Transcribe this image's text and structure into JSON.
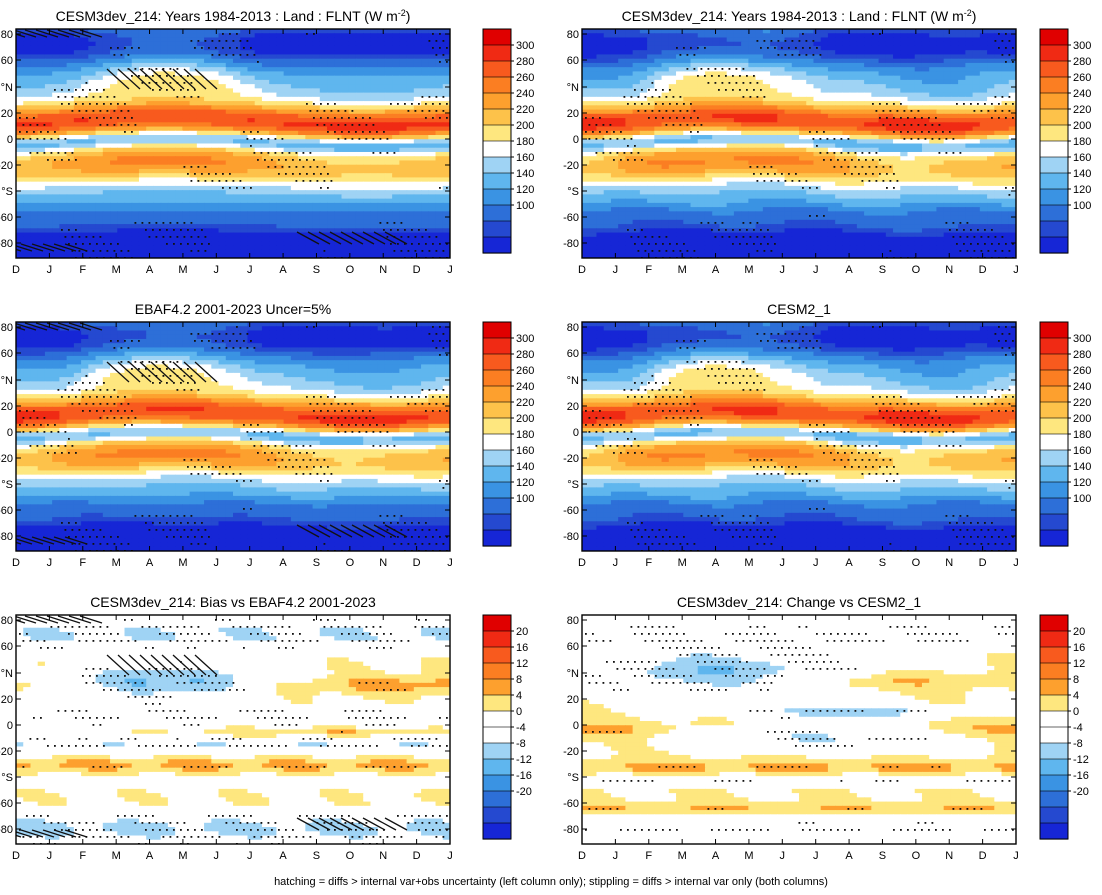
{
  "figure": {
    "footnote": "hatching = diffs > internal var+obs uncertainty (left column only); stippling = diffs > internal var only (both columns)"
  },
  "chart_data": [
    {
      "type": "heatmap",
      "title": "CESM3dev_214: Years 1984-2013 : Land : FLNT (W m",
      "title_sup": "-2",
      "title_tail": ")",
      "x_ticks": [
        "D",
        "J",
        "F",
        "M",
        "A",
        "M",
        "J",
        "J",
        "A",
        "S",
        "O",
        "N",
        "D",
        "J"
      ],
      "y_ticks": [
        "80",
        "60",
        "°N",
        "20",
        "0",
        "-20",
        "°S",
        "-60",
        "-80"
      ],
      "ylim": [
        -90,
        90
      ],
      "colorbar": {
        "labels": [
          "300",
          "280",
          "260",
          "240",
          "220",
          "200",
          "180",
          "160",
          "140",
          "120",
          "100"
        ],
        "colors": [
          "#e00000",
          "#f02a14",
          "#f85a1e",
          "#fb7e22",
          "#fda02e",
          "#fdc24a",
          "#fee77f",
          "#ffffff",
          "#9fd3f4",
          "#5fb6ee",
          "#3a93e3",
          "#2d6fd8",
          "#2549d0",
          "#1626d6"
        ],
        "range": [
          90,
          310
        ],
        "step": 10
      },
      "field_model": "climatology",
      "stipple": true,
      "hatching": true
    },
    {
      "type": "heatmap",
      "title": "CESM3dev_214: Years 1984-2013 : Land : FLNT (W m",
      "title_sup": "-2",
      "title_tail": ")",
      "x_ticks": [
        "D",
        "J",
        "F",
        "M",
        "A",
        "M",
        "J",
        "J",
        "A",
        "S",
        "O",
        "N",
        "D",
        "J"
      ],
      "y_ticks": [
        "80",
        "60",
        "°N",
        "20",
        "0",
        "-20",
        "°S",
        "-60",
        "-80"
      ],
      "ylim": [
        -90,
        90
      ],
      "colorbar": {
        "labels": [
          "300",
          "280",
          "260",
          "240",
          "220",
          "200",
          "180",
          "160",
          "140",
          "120",
          "100"
        ],
        "colors": [
          "#e00000",
          "#f02a14",
          "#f85a1e",
          "#fb7e22",
          "#fda02e",
          "#fdc24a",
          "#fee77f",
          "#ffffff",
          "#9fd3f4",
          "#5fb6ee",
          "#3a93e3",
          "#2d6fd8",
          "#2549d0",
          "#1626d6"
        ],
        "range": [
          90,
          310
        ],
        "step": 10
      },
      "field_model": "climatology",
      "stipple": true,
      "hatching": false
    },
    {
      "type": "heatmap",
      "title": "EBAF4.2 2001-2023 Uncer=5%",
      "title_sup": "",
      "title_tail": "",
      "x_ticks": [
        "D",
        "J",
        "F",
        "M",
        "A",
        "M",
        "J",
        "J",
        "A",
        "S",
        "O",
        "N",
        "D",
        "J"
      ],
      "y_ticks": [
        "80",
        "60",
        "°N",
        "20",
        "0",
        "-20",
        "°S",
        "-60",
        "-80"
      ],
      "ylim": [
        -90,
        90
      ],
      "colorbar": {
        "labels": [
          "300",
          "280",
          "260",
          "240",
          "220",
          "200",
          "180",
          "160",
          "140",
          "120",
          "100"
        ],
        "colors": [
          "#e00000",
          "#f02a14",
          "#f85a1e",
          "#fb7e22",
          "#fda02e",
          "#fdc24a",
          "#fee77f",
          "#ffffff",
          "#9fd3f4",
          "#5fb6ee",
          "#3a93e3",
          "#2d6fd8",
          "#2549d0",
          "#1626d6"
        ],
        "range": [
          90,
          310
        ],
        "step": 10
      },
      "field_model": "climatology",
      "stipple": true,
      "hatching": true
    },
    {
      "type": "heatmap",
      "title": "CESM2_1",
      "title_sup": "",
      "title_tail": "",
      "x_ticks": [
        "D",
        "J",
        "F",
        "M",
        "A",
        "M",
        "J",
        "J",
        "A",
        "S",
        "O",
        "N",
        "D",
        "J"
      ],
      "y_ticks": [
        "80",
        "60",
        "°N",
        "20",
        "0",
        "-20",
        "°S",
        "-60",
        "-80"
      ],
      "ylim": [
        -90,
        90
      ],
      "colorbar": {
        "labels": [
          "300",
          "280",
          "260",
          "240",
          "220",
          "200",
          "180",
          "160",
          "140",
          "120",
          "100"
        ],
        "colors": [
          "#e00000",
          "#f02a14",
          "#f85a1e",
          "#fb7e22",
          "#fda02e",
          "#fdc24a",
          "#fee77f",
          "#ffffff",
          "#9fd3f4",
          "#5fb6ee",
          "#3a93e3",
          "#2d6fd8",
          "#2549d0",
          "#1626d6"
        ],
        "range": [
          90,
          310
        ],
        "step": 10
      },
      "field_model": "climatology",
      "stipple": true,
      "hatching": false
    },
    {
      "type": "heatmap",
      "title": "CESM3dev_214: Bias vs EBAF4.2 2001-2023",
      "title_sup": "",
      "title_tail": "",
      "x_ticks": [
        "D",
        "J",
        "F",
        "M",
        "A",
        "M",
        "J",
        "J",
        "A",
        "S",
        "O",
        "N",
        "D",
        "J"
      ],
      "y_ticks": [
        "80",
        "60",
        "°N",
        "20",
        "0",
        "-20",
        "°S",
        "-60",
        "-80"
      ],
      "ylim": [
        -90,
        90
      ],
      "colorbar": {
        "labels": [
          "20",
          "16",
          "12",
          "8",
          "4",
          "0",
          "-4",
          "-8",
          "-12",
          "-16",
          "-20"
        ],
        "colors": [
          "#e00000",
          "#f02a14",
          "#f85a1e",
          "#fb7e22",
          "#fda02e",
          "#fee77f",
          "#ffffff",
          "#ffffff",
          "#9fd3f4",
          "#5fb6ee",
          "#3a93e3",
          "#2d6fd8",
          "#2549d0",
          "#1626d6"
        ],
        "range": [
          -24,
          24
        ],
        "step": 4
      },
      "field_model": "bias",
      "stipple": true,
      "hatching": true
    },
    {
      "type": "heatmap",
      "title": "CESM3dev_214: Change vs CESM2_1",
      "title_sup": "",
      "title_tail": "",
      "x_ticks": [
        "D",
        "J",
        "F",
        "M",
        "A",
        "M",
        "J",
        "J",
        "A",
        "S",
        "O",
        "N",
        "D",
        "J"
      ],
      "y_ticks": [
        "80",
        "60",
        "°N",
        "20",
        "0",
        "-20",
        "°S",
        "-60",
        "-80"
      ],
      "ylim": [
        -90,
        90
      ],
      "colorbar": {
        "labels": [
          "20",
          "16",
          "12",
          "8",
          "4",
          "0",
          "-4",
          "-8",
          "-12",
          "-16",
          "-20"
        ],
        "colors": [
          "#e00000",
          "#f02a14",
          "#f85a1e",
          "#fb7e22",
          "#fda02e",
          "#fee77f",
          "#ffffff",
          "#ffffff",
          "#9fd3f4",
          "#5fb6ee",
          "#3a93e3",
          "#2d6fd8",
          "#2549d0",
          "#1626d6"
        ],
        "range": [
          -24,
          24
        ],
        "step": 4
      },
      "field_model": "change",
      "stipple": true,
      "hatching": false
    }
  ]
}
